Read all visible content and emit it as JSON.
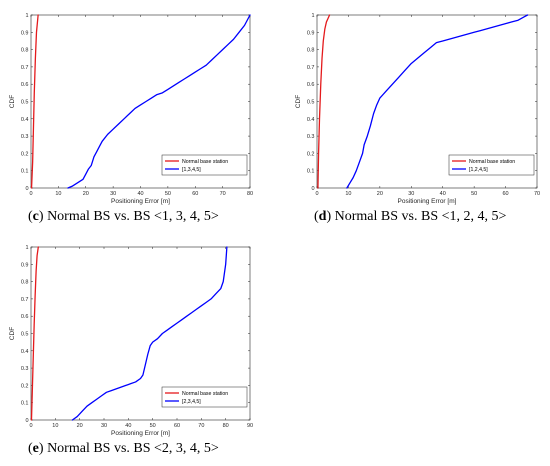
{
  "colors": {
    "normal": "#e41a1c",
    "bs": "#0000ff",
    "axis": "#262626"
  },
  "chart_data": [
    {
      "type": "line",
      "caption_letter": "c",
      "caption_text": " Normal BS vs. BS <1, 3, 4, 5>",
      "xlabel": "Positioning Error [m]",
      "ylabel": "CDF",
      "xlim": [
        0,
        80
      ],
      "ylim": [
        0,
        1
      ],
      "xticks": [
        0,
        10,
        20,
        30,
        40,
        50,
        60,
        70,
        80
      ],
      "yticks": [
        0,
        0.1,
        0.2,
        0.3,
        0.4,
        0.5,
        0.6,
        0.7,
        0.8,
        0.9,
        1
      ],
      "legend_position": "lower-right",
      "series": [
        {
          "name": "Normal base station",
          "color_key": "normal",
          "x": [
            0.2,
            0.6,
            0.9,
            1.2,
            1.6,
            2,
            2.6
          ],
          "y": [
            0,
            0.15,
            0.35,
            0.55,
            0.75,
            0.9,
            1
          ]
        },
        {
          "name": "[1,3,4,5]",
          "color_key": "bs",
          "x": [
            13.5,
            15,
            16,
            17,
            18,
            19,
            20,
            21,
            22,
            23,
            24,
            25,
            26,
            28,
            30,
            32,
            34,
            36,
            38,
            40,
            42,
            44,
            46,
            48,
            50,
            52,
            54,
            56,
            58,
            60,
            62,
            64,
            66,
            68,
            70,
            72,
            74,
            76,
            78,
            80
          ],
          "y": [
            0,
            0.01,
            0.02,
            0.03,
            0.04,
            0.05,
            0.08,
            0.11,
            0.13,
            0.18,
            0.21,
            0.24,
            0.27,
            0.31,
            0.34,
            0.37,
            0.4,
            0.43,
            0.46,
            0.48,
            0.5,
            0.52,
            0.54,
            0.55,
            0.57,
            0.59,
            0.61,
            0.63,
            0.65,
            0.67,
            0.69,
            0.71,
            0.74,
            0.77,
            0.8,
            0.83,
            0.86,
            0.9,
            0.94,
            1.0
          ]
        }
      ]
    },
    {
      "type": "line",
      "caption_letter": "d",
      "caption_text": " Normal BS vs. BS <1, 2, 4, 5>",
      "xlabel": "Positioning Error [m]",
      "ylabel": "CDF",
      "xlim": [
        0,
        70
      ],
      "ylim": [
        0,
        1
      ],
      "xticks": [
        0,
        10,
        20,
        30,
        40,
        50,
        60,
        70
      ],
      "yticks": [
        0,
        0.1,
        0.2,
        0.3,
        0.4,
        0.5,
        0.6,
        0.7,
        0.8,
        0.9,
        1
      ],
      "legend_position": "lower-right",
      "series": [
        {
          "name": "Normal base station",
          "color_key": "normal",
          "x": [
            0.3,
            0.5,
            0.8,
            1.2,
            1.6,
            2,
            2.5,
            3,
            3.5,
            4
          ],
          "y": [
            0,
            0.2,
            0.4,
            0.6,
            0.75,
            0.85,
            0.92,
            0.96,
            0.98,
            1
          ]
        },
        {
          "name": "[1,2,4,5]",
          "color_key": "bs",
          "x": [
            9.5,
            10.5,
            11.5,
            12.5,
            13.5,
            14.5,
            15,
            16,
            17,
            18,
            19,
            20,
            22,
            24,
            26,
            28,
            30,
            32,
            34,
            36,
            38,
            40,
            42,
            44,
            46,
            48,
            50,
            52,
            54,
            56,
            58,
            60,
            62,
            64,
            66,
            67
          ],
          "y": [
            0,
            0.03,
            0.06,
            0.1,
            0.15,
            0.2,
            0.25,
            0.3,
            0.36,
            0.43,
            0.48,
            0.52,
            0.56,
            0.6,
            0.64,
            0.68,
            0.72,
            0.75,
            0.78,
            0.81,
            0.84,
            0.85,
            0.86,
            0.87,
            0.88,
            0.89,
            0.9,
            0.91,
            0.92,
            0.93,
            0.94,
            0.95,
            0.96,
            0.97,
            0.99,
            1.0
          ]
        }
      ]
    },
    {
      "type": "line",
      "caption_letter": "e",
      "caption_text": " Normal BS vs. BS <2, 3, 4, 5>",
      "xlabel": "Positioning Error [m]",
      "ylabel": "CDF",
      "xlim": [
        0,
        90
      ],
      "ylim": [
        0,
        1
      ],
      "xticks": [
        0,
        10,
        20,
        30,
        40,
        50,
        60,
        70,
        80,
        90
      ],
      "yticks": [
        0,
        0.1,
        0.2,
        0.3,
        0.4,
        0.5,
        0.6,
        0.7,
        0.8,
        0.9,
        1
      ],
      "legend_position": "lower-right",
      "series": [
        {
          "name": "Normal base station",
          "color_key": "normal",
          "x": [
            0.2,
            0.5,
            0.9,
            1.3,
            1.7,
            2.1,
            2.5,
            3
          ],
          "y": [
            0,
            0.15,
            0.35,
            0.55,
            0.72,
            0.86,
            0.95,
            1
          ]
        },
        {
          "name": "[2,3,4,5]",
          "color_key": "bs",
          "x": [
            17,
            19,
            21,
            23,
            25,
            27,
            29,
            31,
            33,
            35,
            37,
            39,
            41,
            43,
            45,
            46,
            47,
            48,
            49,
            50,
            52,
            54,
            56,
            58,
            60,
            62,
            64,
            66,
            68,
            70,
            72,
            74,
            76,
            78,
            79,
            80,
            80.5
          ],
          "y": [
            0,
            0.02,
            0.05,
            0.08,
            0.1,
            0.12,
            0.14,
            0.16,
            0.17,
            0.18,
            0.19,
            0.2,
            0.21,
            0.22,
            0.24,
            0.26,
            0.32,
            0.38,
            0.43,
            0.45,
            0.47,
            0.5,
            0.52,
            0.54,
            0.56,
            0.58,
            0.6,
            0.62,
            0.64,
            0.66,
            0.68,
            0.7,
            0.73,
            0.76,
            0.8,
            0.9,
            1.0
          ]
        }
      ]
    }
  ]
}
